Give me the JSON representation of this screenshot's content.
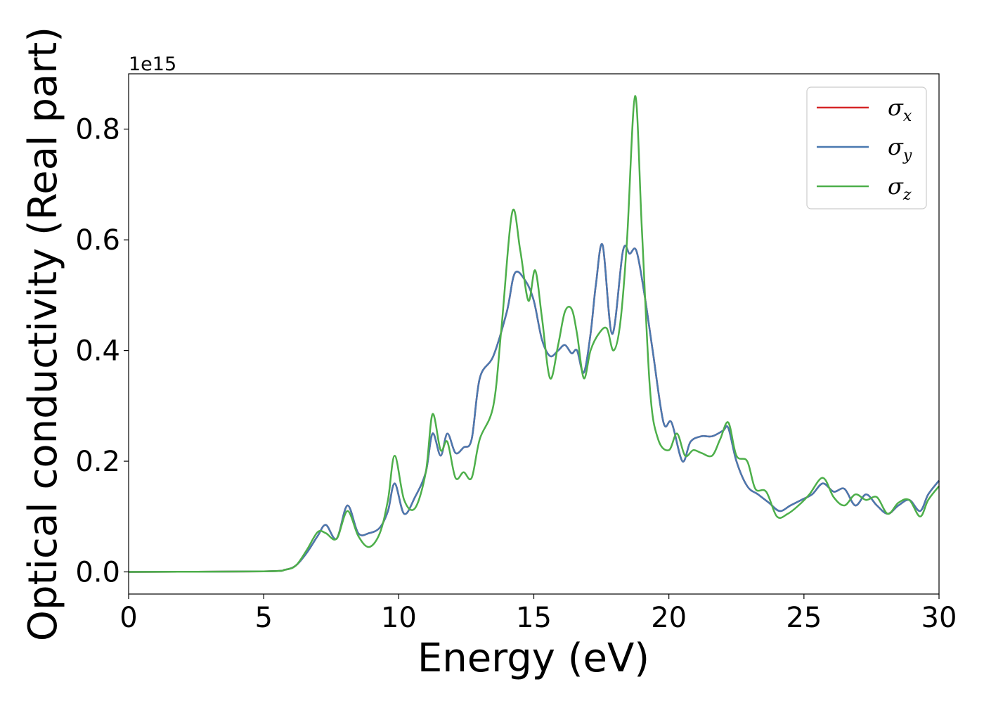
{
  "chart_data": {
    "type": "line",
    "title": "",
    "xlabel": "Energy (eV)",
    "ylabel": "Optical conductivity (Real part)",
    "y_offset_label": "1e15",
    "xlim": [
      0,
      30
    ],
    "ylim": [
      -0.04,
      0.9
    ],
    "x_ticks": [
      0,
      5,
      10,
      15,
      20,
      25,
      30
    ],
    "x_tick_labels": [
      "0",
      "5",
      "10",
      "15",
      "20",
      "25",
      "30"
    ],
    "y_ticks": [
      0.0,
      0.2,
      0.4,
      0.6,
      0.8
    ],
    "y_tick_labels": [
      "0.0",
      "0.2",
      "0.4",
      "0.6",
      "0.8"
    ],
    "grid": false,
    "legend_position": "top-right",
    "series": [
      {
        "name": "σx",
        "symbol": "σ",
        "subscript": "x",
        "color": "#d62728",
        "x": [
          0,
          5,
          5.8,
          6.2,
          6.6,
          7.0,
          7.3,
          7.7,
          8.1,
          8.5,
          8.9,
          9.3,
          9.6,
          9.85,
          10.2,
          10.6,
          11.0,
          11.25,
          11.55,
          11.8,
          12.1,
          12.4,
          12.7,
          13.0,
          13.5,
          14.0,
          14.3,
          14.7,
          15.0,
          15.3,
          15.6,
          15.9,
          16.15,
          16.4,
          16.6,
          16.85,
          17.1,
          17.3,
          17.55,
          17.9,
          18.3,
          18.55,
          18.8,
          19.1,
          19.4,
          19.8,
          20.1,
          20.5,
          20.8,
          21.2,
          21.6,
          22.0,
          22.2,
          22.5,
          22.9,
          23.3,
          23.7,
          24.1,
          24.5,
          24.9,
          25.3,
          25.7,
          26.1,
          26.5,
          26.9,
          27.3,
          27.7,
          28.1,
          28.5,
          28.9,
          29.3,
          29.6,
          30.0
        ],
        "y": [
          0.0,
          0.001,
          0.004,
          0.012,
          0.035,
          0.065,
          0.085,
          0.06,
          0.12,
          0.07,
          0.07,
          0.08,
          0.11,
          0.16,
          0.105,
          0.135,
          0.18,
          0.25,
          0.21,
          0.25,
          0.215,
          0.225,
          0.24,
          0.35,
          0.39,
          0.47,
          0.54,
          0.525,
          0.49,
          0.42,
          0.39,
          0.4,
          0.41,
          0.395,
          0.4,
          0.36,
          0.43,
          0.52,
          0.59,
          0.43,
          0.58,
          0.575,
          0.58,
          0.5,
          0.4,
          0.27,
          0.27,
          0.2,
          0.235,
          0.245,
          0.245,
          0.255,
          0.26,
          0.2,
          0.155,
          0.14,
          0.125,
          0.11,
          0.12,
          0.13,
          0.14,
          0.16,
          0.145,
          0.15,
          0.12,
          0.14,
          0.12,
          0.105,
          0.12,
          0.13,
          0.11,
          0.14,
          0.165
        ]
      },
      {
        "name": "σy",
        "symbol": "σ",
        "subscript": "y",
        "color": "#4a79b0",
        "x": [
          0,
          5,
          5.8,
          6.2,
          6.6,
          7.0,
          7.3,
          7.7,
          8.1,
          8.5,
          8.9,
          9.3,
          9.6,
          9.85,
          10.2,
          10.6,
          11.0,
          11.25,
          11.55,
          11.8,
          12.1,
          12.4,
          12.7,
          13.0,
          13.5,
          14.0,
          14.3,
          14.7,
          15.0,
          15.3,
          15.6,
          15.9,
          16.15,
          16.4,
          16.6,
          16.85,
          17.1,
          17.3,
          17.55,
          17.9,
          18.3,
          18.55,
          18.8,
          19.1,
          19.4,
          19.8,
          20.1,
          20.5,
          20.8,
          21.2,
          21.6,
          22.0,
          22.2,
          22.5,
          22.9,
          23.3,
          23.7,
          24.1,
          24.5,
          24.9,
          25.3,
          25.7,
          26.1,
          26.5,
          26.9,
          27.3,
          27.7,
          28.1,
          28.5,
          28.9,
          29.3,
          29.6,
          30.0
        ],
        "y": [
          0.0,
          0.001,
          0.004,
          0.012,
          0.035,
          0.065,
          0.085,
          0.06,
          0.12,
          0.07,
          0.07,
          0.08,
          0.11,
          0.16,
          0.105,
          0.135,
          0.18,
          0.25,
          0.21,
          0.25,
          0.215,
          0.225,
          0.24,
          0.35,
          0.39,
          0.47,
          0.54,
          0.525,
          0.49,
          0.42,
          0.39,
          0.4,
          0.41,
          0.395,
          0.4,
          0.36,
          0.43,
          0.52,
          0.59,
          0.43,
          0.58,
          0.575,
          0.58,
          0.5,
          0.4,
          0.27,
          0.27,
          0.2,
          0.235,
          0.245,
          0.245,
          0.255,
          0.26,
          0.2,
          0.155,
          0.14,
          0.125,
          0.11,
          0.12,
          0.13,
          0.14,
          0.16,
          0.145,
          0.15,
          0.12,
          0.14,
          0.12,
          0.105,
          0.12,
          0.13,
          0.11,
          0.14,
          0.165
        ]
      },
      {
        "name": "σz",
        "symbol": "σ",
        "subscript": "z",
        "color": "#4daf4a",
        "x": [
          0,
          5,
          5.8,
          6.2,
          6.6,
          7.0,
          7.3,
          7.7,
          8.1,
          8.5,
          8.9,
          9.3,
          9.6,
          9.85,
          10.2,
          10.6,
          11.0,
          11.25,
          11.55,
          11.8,
          12.1,
          12.4,
          12.7,
          13.0,
          13.5,
          13.8,
          14.2,
          14.5,
          14.8,
          15.05,
          15.3,
          15.6,
          15.9,
          16.15,
          16.4,
          16.6,
          16.85,
          17.1,
          17.4,
          17.7,
          17.95,
          18.2,
          18.45,
          18.75,
          19.0,
          19.3,
          19.6,
          20.0,
          20.3,
          20.6,
          20.9,
          21.2,
          21.6,
          21.9,
          22.2,
          22.5,
          22.9,
          23.2,
          23.6,
          24.0,
          24.4,
          24.8,
          25.2,
          25.7,
          26.1,
          26.5,
          26.9,
          27.3,
          27.7,
          28.1,
          28.5,
          28.9,
          29.3,
          29.6,
          30.0
        ],
        "y": [
          0.0,
          0.001,
          0.004,
          0.012,
          0.04,
          0.072,
          0.07,
          0.06,
          0.11,
          0.065,
          0.045,
          0.07,
          0.13,
          0.21,
          0.13,
          0.115,
          0.18,
          0.285,
          0.22,
          0.235,
          0.17,
          0.18,
          0.17,
          0.24,
          0.3,
          0.44,
          0.65,
          0.58,
          0.49,
          0.545,
          0.46,
          0.35,
          0.41,
          0.47,
          0.475,
          0.43,
          0.35,
          0.4,
          0.43,
          0.44,
          0.4,
          0.45,
          0.6,
          0.86,
          0.62,
          0.33,
          0.24,
          0.22,
          0.25,
          0.21,
          0.22,
          0.215,
          0.21,
          0.24,
          0.27,
          0.21,
          0.2,
          0.15,
          0.145,
          0.1,
          0.105,
          0.12,
          0.14,
          0.17,
          0.135,
          0.12,
          0.14,
          0.13,
          0.135,
          0.105,
          0.125,
          0.13,
          0.1,
          0.13,
          0.155
        ]
      }
    ]
  }
}
